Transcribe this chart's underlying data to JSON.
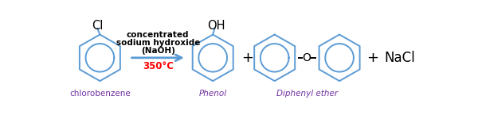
{
  "bg_color": "#ffffff",
  "ring_color": "#5b9bd5",
  "label_color": "#7030a0",
  "arrow_color": "#5b9bd5",
  "temp_color": "#ff0000",
  "cl_color": "#000000",
  "nacl_color": "#000000",
  "o_color": "#000000",
  "oh_color": "#000000",
  "plus_color": "#000000",
  "condition_line1": "concentrated",
  "condition_line2": "sodium hydroxide",
  "condition_line3": "(NaOH)",
  "temp_text": "350°C",
  "label_chlorobenzene": "chlorobenzene",
  "label_phenol": "Phenol",
  "label_diphenyl": "Diphenyl ether",
  "figw": 6.0,
  "figh": 1.45,
  "dpi": 100
}
